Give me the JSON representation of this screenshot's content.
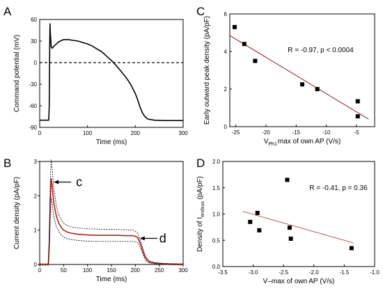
{
  "chart_data": [
    {
      "panel": "A",
      "type": "line",
      "xlabel": "Time (ms)",
      "ylabel": "Command potential (mV)",
      "xlim": [
        0,
        300
      ],
      "ylim": [
        -90,
        60
      ],
      "xticks": [
        0,
        100,
        200,
        300
      ],
      "yticks": [
        -90,
        -60,
        -30,
        0,
        30,
        60
      ],
      "reference_line": {
        "y": 0,
        "style": "dashed"
      },
      "series": [
        {
          "color": "#000000",
          "x": [
            0,
            19,
            20,
            20.5,
            21,
            21.5,
            22,
            24,
            26,
            30,
            40,
            50,
            60,
            70,
            80,
            90,
            100,
            110,
            120,
            130,
            140,
            150,
            160,
            170,
            180,
            190,
            200,
            205,
            210,
            215,
            220,
            225,
            230,
            240,
            260,
            280,
            300
          ],
          "y": [
            -80,
            -80,
            -60,
            -15,
            25,
            54,
            45,
            22,
            20,
            23,
            29,
            32,
            32,
            31,
            30,
            28,
            26,
            23,
            19,
            15,
            9,
            3,
            -4,
            -12,
            -20,
            -30,
            -43,
            -52,
            -62,
            -70,
            -75,
            -78,
            -79,
            -80,
            -80.5,
            -80.5,
            -80.5
          ]
        }
      ]
    },
    {
      "panel": "B",
      "type": "line",
      "xlabel": "Time (ms)",
      "ylabel": "Current density (pA/pF)",
      "xlim": [
        0,
        300
      ],
      "ylim": [
        0,
        3
      ],
      "xticks": [
        0,
        50,
        100,
        150,
        200,
        250,
        300
      ],
      "yticks": [
        0,
        1,
        2,
        3
      ],
      "callouts": [
        {
          "text": "c",
          "x": 25,
          "y": 2.4
        },
        {
          "text": "d",
          "x": 205,
          "y": 0.78
        }
      ],
      "series": [
        {
          "color": "#b22222",
          "x": [
            0,
            18,
            20,
            22,
            24,
            26,
            28,
            30,
            35,
            40,
            45,
            50,
            60,
            70,
            80,
            100,
            120,
            140,
            160,
            180,
            195,
            200,
            205,
            210,
            215,
            220,
            225,
            230,
            240,
            260,
            300
          ],
          "y": [
            0,
            0,
            0.6,
            1.8,
            2.5,
            2.3,
            2.0,
            1.75,
            1.4,
            1.2,
            1.08,
            1.0,
            0.93,
            0.9,
            0.88,
            0.86,
            0.85,
            0.85,
            0.85,
            0.84,
            0.84,
            0.82,
            0.78,
            0.62,
            0.42,
            0.22,
            0.12,
            0.07,
            0.04,
            0.02,
            0
          ]
        },
        {
          "color": "#000000",
          "style": "dashed",
          "x": [
            0,
            18,
            20,
            22,
            24,
            26,
            28,
            30,
            35,
            40,
            45,
            50,
            60,
            70,
            80,
            100,
            120,
            140,
            160,
            180,
            195,
            200,
            205,
            210,
            215,
            220,
            225,
            230,
            240,
            260,
            300
          ],
          "y": [
            0.02,
            0.02,
            0.8,
            2.4,
            3.05,
            2.8,
            2.45,
            2.15,
            1.7,
            1.45,
            1.3,
            1.2,
            1.12,
            1.08,
            1.06,
            1.04,
            1.03,
            1.02,
            1.02,
            1.01,
            1.0,
            0.97,
            0.9,
            0.72,
            0.5,
            0.3,
            0.17,
            0.1,
            0.06,
            0.03,
            0.02
          ]
        },
        {
          "color": "#000000",
          "style": "dashed",
          "x": [
            0,
            18,
            20,
            22,
            24,
            26,
            28,
            30,
            35,
            40,
            45,
            50,
            60,
            70,
            80,
            100,
            120,
            140,
            160,
            180,
            195,
            200,
            205,
            210,
            215,
            220,
            225,
            230,
            240,
            260,
            300
          ],
          "y": [
            -0.02,
            -0.02,
            0.4,
            1.3,
            1.95,
            1.8,
            1.55,
            1.35,
            1.1,
            0.95,
            0.86,
            0.8,
            0.74,
            0.72,
            0.7,
            0.68,
            0.67,
            0.67,
            0.67,
            0.67,
            0.67,
            0.66,
            0.64,
            0.5,
            0.33,
            0.15,
            0.07,
            0.04,
            0.02,
            0.0,
            -0.02
          ]
        }
      ]
    },
    {
      "panel": "C",
      "type": "scatter",
      "xlabel_main": "V",
      "xlabel_sub": "Ph1",
      "xlabel_rest": "max of own AP (V/s)",
      "ylabel": "Early outward peak density (pA/pF)",
      "xlim": [
        -26,
        -2
      ],
      "ylim": [
        0,
        6
      ],
      "xticks": [
        -25,
        -20,
        -15,
        -10,
        -5
      ],
      "yticks": [
        0,
        2,
        4,
        6
      ],
      "annotation": "R = -0.97,   p < 0.0004",
      "points": {
        "x": [
          -25.2,
          -23.6,
          -21.8,
          -14.0,
          -11.5,
          -4.8,
          -4.8
        ],
        "y": [
          5.3,
          4.4,
          3.5,
          2.25,
          2.0,
          1.35,
          0.55
        ]
      },
      "fit": {
        "x": [
          -26,
          -3
        ],
        "y": [
          4.85,
          0.4
        ],
        "color": "#8b1a1a"
      }
    },
    {
      "panel": "D",
      "type": "scatter",
      "xlabel": "V–max of own AP (V/s)",
      "ylabel_main": "Density of I",
      "ylabel_sub": "endsus",
      "ylabel_rest": " (pA/pF)",
      "xlim": [
        -3.5,
        -1.0
      ],
      "ylim": [
        0,
        2.0
      ],
      "xticks": [
        -3.5,
        -3.0,
        -2.5,
        -2.0,
        -1.5,
        -1.0
      ],
      "yticks": [
        0.0,
        0.5,
        1.0,
        1.5,
        2.0
      ],
      "annotation": "R = -0.41,   p = 0.36",
      "points": {
        "x": [
          -3.05,
          -2.93,
          -2.9,
          -2.44,
          -2.4,
          -2.38,
          -1.38
        ],
        "y": [
          0.85,
          1.02,
          0.69,
          1.65,
          0.74,
          0.53,
          0.35
        ]
      },
      "fit": {
        "x": [
          -3.17,
          -1.35
        ],
        "y": [
          1.05,
          0.45
        ],
        "color": "#c06060"
      }
    }
  ]
}
